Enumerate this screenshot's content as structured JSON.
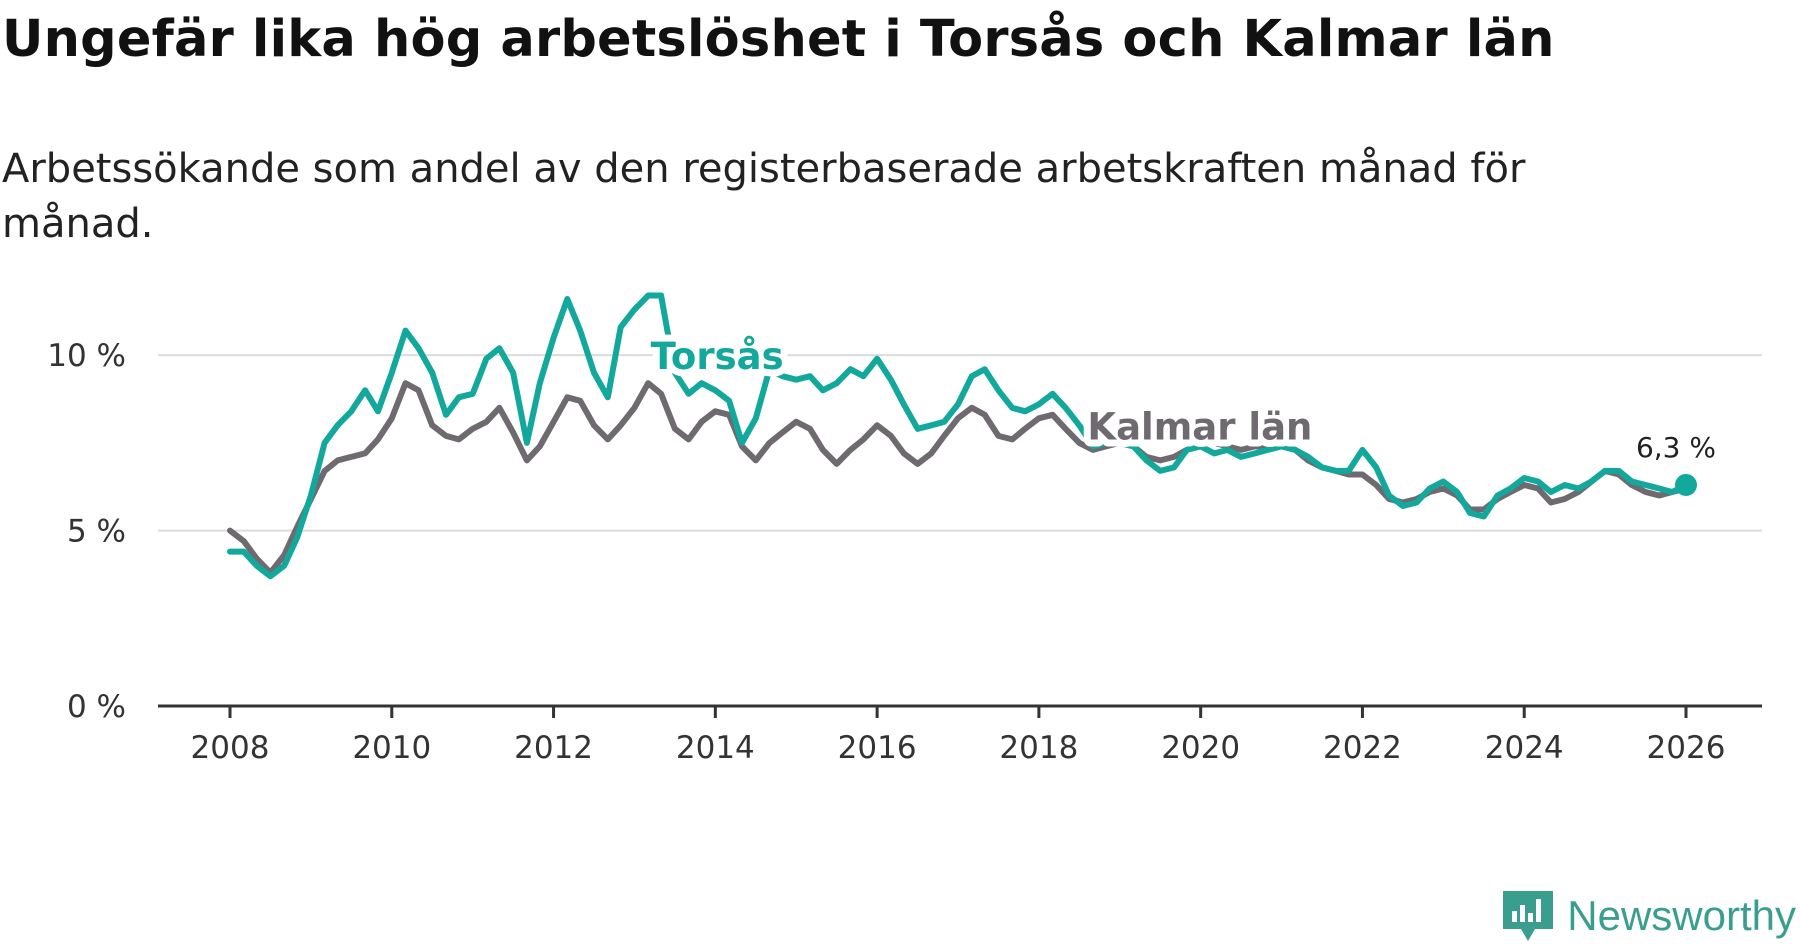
{
  "title": "Ungefär lika hög arbetslöshet i Torsås och Kalmar län",
  "subtitle": "Arbetssökande som andel av den registerbaserade arbetskraften månad för månad.",
  "brand": {
    "name": "Newsworthy",
    "icon": "newsworthy-logo-icon",
    "color": "#3a9e8f"
  },
  "chart_data": {
    "type": "line",
    "title": "Ungefär lika hög arbetslöshet i Torsås och Kalmar län",
    "xlabel": "",
    "ylabel": "",
    "xlim": [
      2008,
      2027
    ],
    "ylim": [
      0,
      12
    ],
    "x_ticks": [
      2008,
      2010,
      2012,
      2014,
      2016,
      2018,
      2020,
      2022,
      2024,
      2026
    ],
    "x_tick_labels": [
      "2008",
      "2010",
      "2012",
      "2014",
      "2016",
      "2018",
      "2020",
      "2022",
      "2024",
      "2026"
    ],
    "y_ticks": [
      0,
      5,
      10
    ],
    "y_tick_labels": [
      "0 %",
      "5 %",
      "10 %"
    ],
    "grid": "horizontal",
    "end_label": "6,3 %",
    "series": [
      {
        "name": "Torsås",
        "color": "#12a89b",
        "points": [
          [
            2008.0,
            4.4
          ],
          [
            2008.17,
            4.4
          ],
          [
            2008.33,
            4.0
          ],
          [
            2008.5,
            3.7
          ],
          [
            2008.67,
            4.0
          ],
          [
            2008.83,
            4.8
          ],
          [
            2009.0,
            6.0
          ],
          [
            2009.17,
            7.5
          ],
          [
            2009.33,
            8.0
          ],
          [
            2009.5,
            8.4
          ],
          [
            2009.67,
            9.0
          ],
          [
            2009.83,
            8.4
          ],
          [
            2010.0,
            9.5
          ],
          [
            2010.17,
            10.7
          ],
          [
            2010.33,
            10.2
          ],
          [
            2010.5,
            9.5
          ],
          [
            2010.67,
            8.3
          ],
          [
            2010.83,
            8.8
          ],
          [
            2011.0,
            8.9
          ],
          [
            2011.17,
            9.9
          ],
          [
            2011.33,
            10.2
          ],
          [
            2011.5,
            9.5
          ],
          [
            2011.67,
            7.5
          ],
          [
            2011.83,
            9.2
          ],
          [
            2012.0,
            10.5
          ],
          [
            2012.17,
            11.6
          ],
          [
            2012.33,
            10.7
          ],
          [
            2012.5,
            9.5
          ],
          [
            2012.67,
            8.8
          ],
          [
            2012.83,
            10.8
          ],
          [
            2013.0,
            11.3
          ],
          [
            2013.17,
            11.7
          ],
          [
            2013.33,
            11.7
          ],
          [
            2013.5,
            9.5
          ],
          [
            2013.67,
            8.9
          ],
          [
            2013.83,
            9.2
          ],
          [
            2014.0,
            9.0
          ],
          [
            2014.17,
            8.7
          ],
          [
            2014.33,
            7.5
          ],
          [
            2014.5,
            8.2
          ],
          [
            2014.67,
            9.6
          ],
          [
            2014.83,
            9.4
          ],
          [
            2015.0,
            9.3
          ],
          [
            2015.17,
            9.4
          ],
          [
            2015.33,
            9.0
          ],
          [
            2015.5,
            9.2
          ],
          [
            2015.67,
            9.6
          ],
          [
            2015.83,
            9.4
          ],
          [
            2016.0,
            9.9
          ],
          [
            2016.17,
            9.3
          ],
          [
            2016.33,
            8.6
          ],
          [
            2016.5,
            7.9
          ],
          [
            2016.67,
            8.0
          ],
          [
            2016.83,
            8.1
          ],
          [
            2017.0,
            8.6
          ],
          [
            2017.17,
            9.4
          ],
          [
            2017.33,
            9.6
          ],
          [
            2017.5,
            9.0
          ],
          [
            2017.67,
            8.5
          ],
          [
            2017.83,
            8.4
          ],
          [
            2018.0,
            8.6
          ],
          [
            2018.17,
            8.9
          ],
          [
            2018.33,
            8.5
          ],
          [
            2018.5,
            8.0
          ],
          [
            2018.67,
            7.4
          ],
          [
            2018.83,
            7.5
          ],
          [
            2019.0,
            7.5
          ],
          [
            2019.17,
            7.4
          ],
          [
            2019.33,
            7.0
          ],
          [
            2019.5,
            6.7
          ],
          [
            2019.67,
            6.8
          ],
          [
            2019.83,
            7.3
          ],
          [
            2020.0,
            7.4
          ],
          [
            2020.17,
            7.2
          ],
          [
            2020.33,
            7.3
          ],
          [
            2020.5,
            7.1
          ],
          [
            2020.67,
            7.2
          ],
          [
            2020.83,
            7.3
          ],
          [
            2021.0,
            7.4
          ],
          [
            2021.17,
            7.3
          ],
          [
            2021.33,
            7.1
          ],
          [
            2021.5,
            6.8
          ],
          [
            2021.67,
            6.7
          ],
          [
            2021.83,
            6.7
          ],
          [
            2022.0,
            7.3
          ],
          [
            2022.17,
            6.8
          ],
          [
            2022.33,
            6.0
          ],
          [
            2022.5,
            5.7
          ],
          [
            2022.67,
            5.8
          ],
          [
            2022.83,
            6.2
          ],
          [
            2023.0,
            6.4
          ],
          [
            2023.17,
            6.1
          ],
          [
            2023.33,
            5.5
          ],
          [
            2023.5,
            5.4
          ],
          [
            2023.67,
            6.0
          ],
          [
            2023.83,
            6.2
          ],
          [
            2024.0,
            6.5
          ],
          [
            2024.17,
            6.4
          ],
          [
            2024.33,
            6.1
          ],
          [
            2024.5,
            6.3
          ],
          [
            2024.67,
            6.2
          ],
          [
            2024.83,
            6.4
          ],
          [
            2025.0,
            6.7
          ],
          [
            2025.17,
            6.7
          ],
          [
            2025.33,
            6.4
          ],
          [
            2025.5,
            6.3
          ],
          [
            2025.67,
            6.2
          ],
          [
            2025.83,
            6.1
          ],
          [
            2026.0,
            6.3
          ]
        ]
      },
      {
        "name": "Kalmar län",
        "color": "#6e6a70",
        "points": [
          [
            2008.0,
            5.0
          ],
          [
            2008.17,
            4.7
          ],
          [
            2008.33,
            4.2
          ],
          [
            2008.5,
            3.8
          ],
          [
            2008.67,
            4.3
          ],
          [
            2008.83,
            5.1
          ],
          [
            2009.0,
            5.9
          ],
          [
            2009.17,
            6.7
          ],
          [
            2009.33,
            7.0
          ],
          [
            2009.5,
            7.1
          ],
          [
            2009.67,
            7.2
          ],
          [
            2009.83,
            7.6
          ],
          [
            2010.0,
            8.2
          ],
          [
            2010.17,
            9.2
          ],
          [
            2010.33,
            9.0
          ],
          [
            2010.5,
            8.0
          ],
          [
            2010.67,
            7.7
          ],
          [
            2010.83,
            7.6
          ],
          [
            2011.0,
            7.9
          ],
          [
            2011.17,
            8.1
          ],
          [
            2011.33,
            8.5
          ],
          [
            2011.5,
            7.8
          ],
          [
            2011.67,
            7.0
          ],
          [
            2011.83,
            7.4
          ],
          [
            2012.0,
            8.1
          ],
          [
            2012.17,
            8.8
          ],
          [
            2012.33,
            8.7
          ],
          [
            2012.5,
            8.0
          ],
          [
            2012.67,
            7.6
          ],
          [
            2012.83,
            8.0
          ],
          [
            2013.0,
            8.5
          ],
          [
            2013.17,
            9.2
          ],
          [
            2013.33,
            8.9
          ],
          [
            2013.5,
            7.9
          ],
          [
            2013.67,
            7.6
          ],
          [
            2013.83,
            8.1
          ],
          [
            2014.0,
            8.4
          ],
          [
            2014.17,
            8.3
          ],
          [
            2014.33,
            7.4
          ],
          [
            2014.5,
            7.0
          ],
          [
            2014.67,
            7.5
          ],
          [
            2014.83,
            7.8
          ],
          [
            2015.0,
            8.1
          ],
          [
            2015.17,
            7.9
          ],
          [
            2015.33,
            7.3
          ],
          [
            2015.5,
            6.9
          ],
          [
            2015.67,
            7.3
          ],
          [
            2015.83,
            7.6
          ],
          [
            2016.0,
            8.0
          ],
          [
            2016.17,
            7.7
          ],
          [
            2016.33,
            7.2
          ],
          [
            2016.5,
            6.9
          ],
          [
            2016.67,
            7.2
          ],
          [
            2016.83,
            7.7
          ],
          [
            2017.0,
            8.2
          ],
          [
            2017.17,
            8.5
          ],
          [
            2017.33,
            8.3
          ],
          [
            2017.5,
            7.7
          ],
          [
            2017.67,
            7.6
          ],
          [
            2017.83,
            7.9
          ],
          [
            2018.0,
            8.2
          ],
          [
            2018.17,
            8.3
          ],
          [
            2018.33,
            7.9
          ],
          [
            2018.5,
            7.5
          ],
          [
            2018.67,
            7.3
          ],
          [
            2018.83,
            7.4
          ],
          [
            2019.0,
            7.5
          ],
          [
            2019.17,
            7.4
          ],
          [
            2019.33,
            7.1
          ],
          [
            2019.5,
            7.0
          ],
          [
            2019.67,
            7.1
          ],
          [
            2019.83,
            7.3
          ],
          [
            2020.0,
            7.5
          ],
          [
            2020.17,
            7.5
          ],
          [
            2020.33,
            7.4
          ],
          [
            2020.5,
            7.3
          ],
          [
            2020.67,
            7.4
          ],
          [
            2020.83,
            7.4
          ],
          [
            2021.0,
            7.4
          ],
          [
            2021.17,
            7.3
          ],
          [
            2021.33,
            7.0
          ],
          [
            2021.5,
            6.8
          ],
          [
            2021.67,
            6.7
          ],
          [
            2021.83,
            6.6
          ],
          [
            2022.0,
            6.6
          ],
          [
            2022.17,
            6.3
          ],
          [
            2022.33,
            5.9
          ],
          [
            2022.5,
            5.8
          ],
          [
            2022.67,
            5.9
          ],
          [
            2022.83,
            6.1
          ],
          [
            2023.0,
            6.2
          ],
          [
            2023.17,
            6.0
          ],
          [
            2023.33,
            5.6
          ],
          [
            2023.5,
            5.6
          ],
          [
            2023.67,
            5.9
          ],
          [
            2023.83,
            6.1
          ],
          [
            2024.0,
            6.3
          ],
          [
            2024.17,
            6.2
          ],
          [
            2024.33,
            5.8
          ],
          [
            2024.5,
            5.9
          ],
          [
            2024.67,
            6.1
          ],
          [
            2024.83,
            6.4
          ],
          [
            2025.0,
            6.7
          ],
          [
            2025.17,
            6.6
          ],
          [
            2025.33,
            6.3
          ],
          [
            2025.5,
            6.1
          ],
          [
            2025.67,
            6.0
          ],
          [
            2025.83,
            6.1
          ],
          [
            2026.0,
            6.2
          ]
        ]
      }
    ]
  }
}
